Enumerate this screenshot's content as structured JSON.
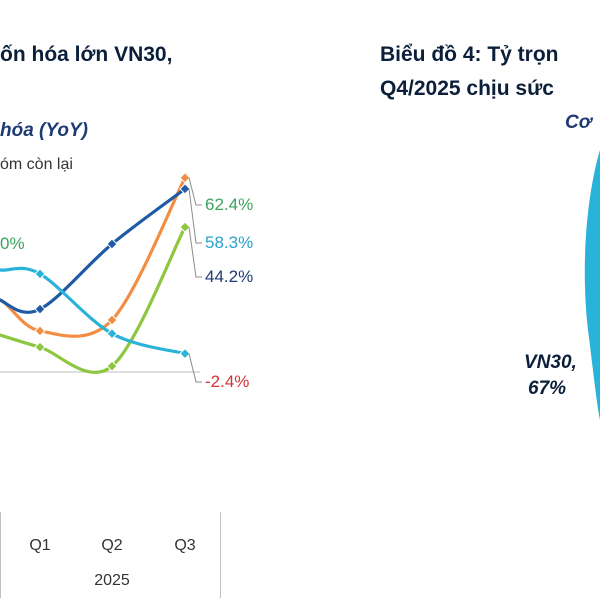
{
  "left_title": "ốn hóa lớn VN30,",
  "left_subtitle": "hóa (YoY)",
  "legend_partial": "óm còn lại",
  "right_title_line1": "Biểu đồ 4: Tỷ trọn",
  "right_title_line2": "Q4/2025 chịu sức",
  "right_subtitle": "Cơ",
  "chart_data": [
    {
      "type": "line",
      "title": "",
      "xlabel": "2025",
      "ylabel": "",
      "categories": [
        "Q1",
        "Q2",
        "Q3"
      ],
      "year_label": "2025",
      "visible_partial_label": "0%",
      "ylim": [
        -60,
        80
      ],
      "grid": false,
      "series": [
        {
          "name": "",
          "color": "#f28e43",
          "values": [
            6,
            10,
            62.4
          ],
          "end_label": "62.4%",
          "label_color": "#3aa35b"
        },
        {
          "name": "",
          "color": "#1f5aa6",
          "values": [
            14,
            38,
            58.3
          ],
          "end_label": "58.3%",
          "label_color": "#27a3c8"
        },
        {
          "name": "",
          "color": "#8dc63f",
          "values": [
            0,
            -7,
            44.2
          ],
          "end_label": "44.2%",
          "label_color": "#1f3b73"
        },
        {
          "name": "",
          "color": "#2ab3d9",
          "values": [
            27,
            5,
            -2.4
          ],
          "end_label": "-2.4%",
          "label_color": "#d0343a"
        }
      ]
    },
    {
      "type": "pie",
      "title": "",
      "slices": [
        {
          "label": "VN30,",
          "value": 67,
          "value_label": "67%",
          "color": "#2ab3d9"
        }
      ]
    }
  ]
}
